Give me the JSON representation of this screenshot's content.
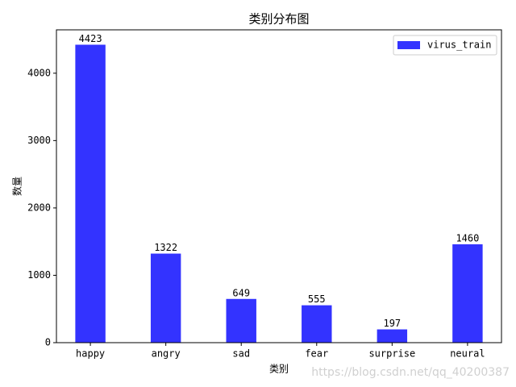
{
  "chart_data": {
    "type": "bar",
    "title": "类别分布图",
    "x_label": "类别",
    "y_label": "数量",
    "categories": [
      "happy",
      "angry",
      "sad",
      "fear",
      "surprise",
      "neural"
    ],
    "series": [
      {
        "name": "virus_train",
        "color": "#3333ff",
        "values": [
          4423,
          1322,
          649,
          555,
          197,
          1460
        ]
      }
    ],
    "ylim": [
      0,
      4644
    ],
    "yticks": [
      0,
      1000,
      2000,
      3000,
      4000
    ],
    "legend": "upper right",
    "watermark": "https://blog.csdn.net/qq_40200387"
  }
}
